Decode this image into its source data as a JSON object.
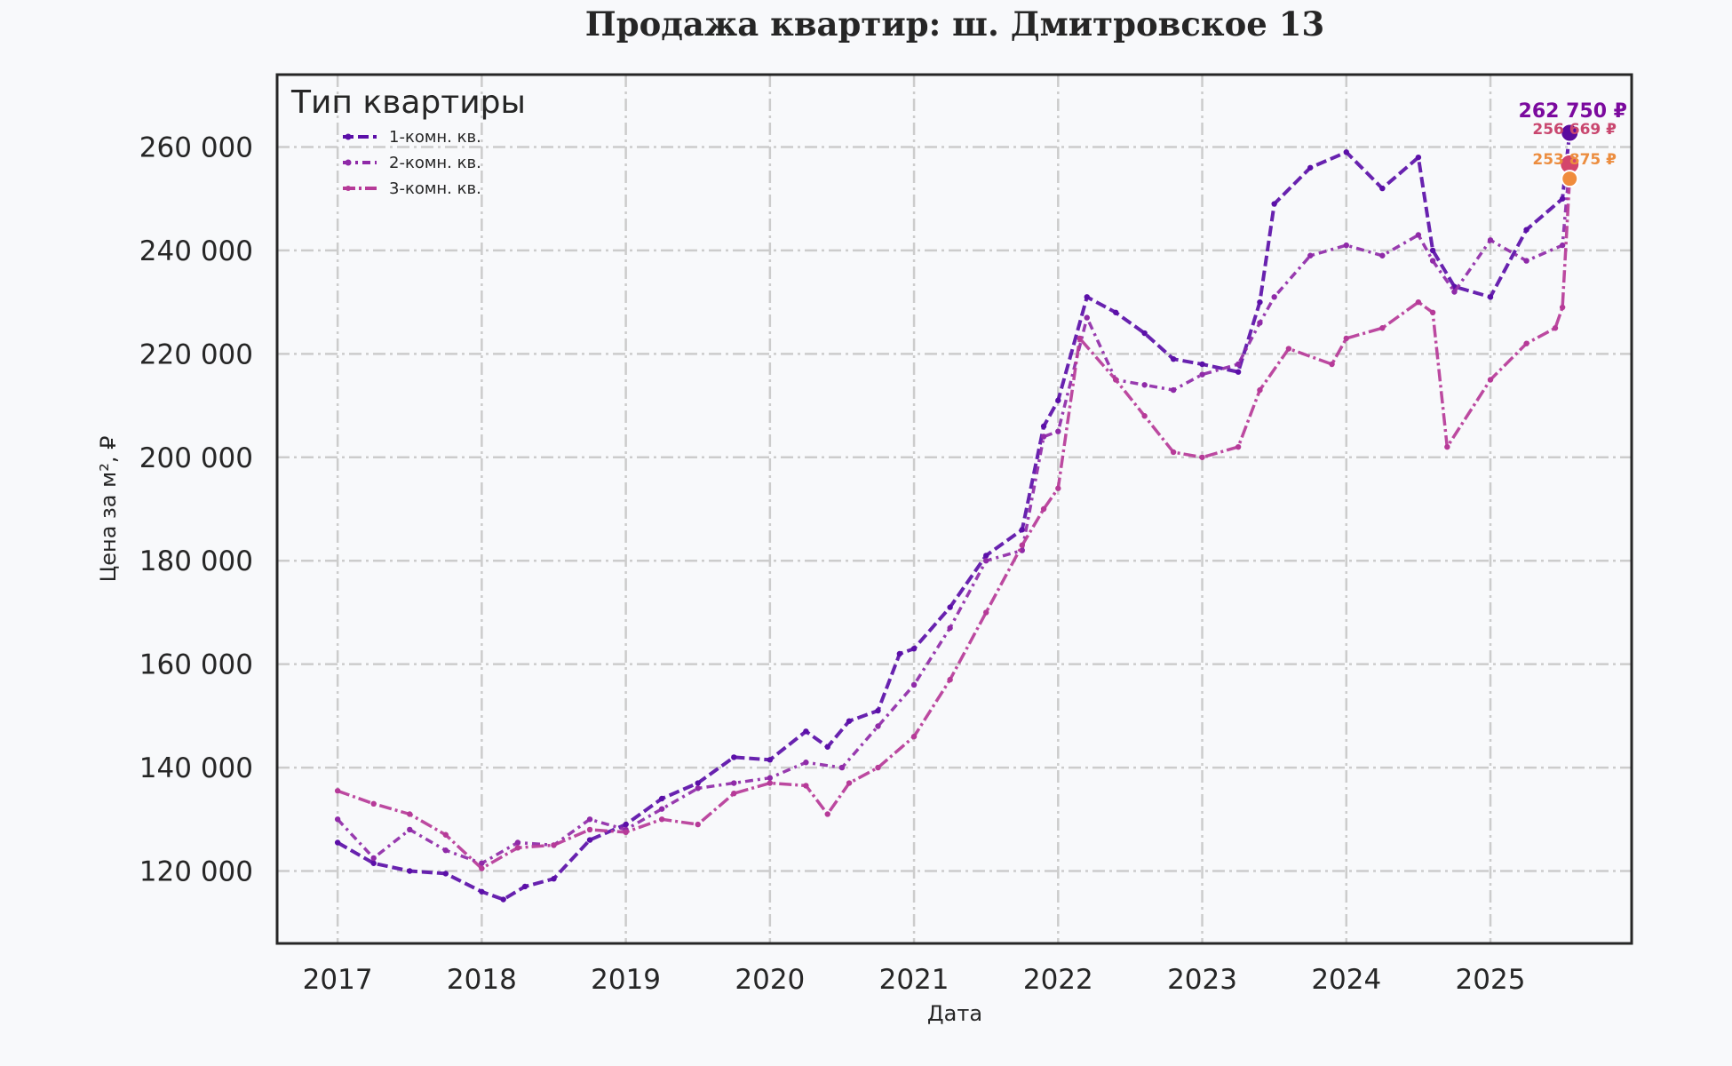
{
  "chart_data": {
    "type": "line",
    "title": "Продажа квартир: ш. Дмитровское 13",
    "xlabel": "Дата",
    "ylabel": "Цена за м², ₽",
    "xlim": [
      2016.58,
      2025.98
    ],
    "ylim": [
      106000,
      274000
    ],
    "x_ticks": [
      2017,
      2018,
      2019,
      2020,
      2021,
      2022,
      2023,
      2024,
      2025
    ],
    "x_tick_labels": [
      "2017",
      "2018",
      "2019",
      "2020",
      "2021",
      "2022",
      "2023",
      "2024",
      "2025"
    ],
    "y_ticks": [
      120000,
      140000,
      160000,
      180000,
      200000,
      220000,
      240000,
      260000
    ],
    "y_tick_labels": [
      "120 000",
      "140 000",
      "160 000",
      "180 000",
      "200 000",
      "220 000",
      "240 000",
      "260 000"
    ],
    "grid": true,
    "legend": {
      "title": "Тип квартиры",
      "placement": "top-left"
    },
    "series": [
      {
        "name": "1-комн. кв.",
        "color": "#5b0fa8",
        "x": [
          2017.0,
          2017.25,
          2017.5,
          2017.75,
          2018.0,
          2018.15,
          2018.3,
          2018.5,
          2018.75,
          2019.0,
          2019.25,
          2019.5,
          2019.75,
          2020.0,
          2020.25,
          2020.4,
          2020.55,
          2020.75,
          2020.9,
          2021.0,
          2021.25,
          2021.5,
          2021.75,
          2021.9,
          2022.0,
          2022.2,
          2022.4,
          2022.6,
          2022.8,
          2023.0,
          2023.25,
          2023.4,
          2023.5,
          2023.75,
          2024.0,
          2024.25,
          2024.5,
          2024.6,
          2024.75,
          2025.0,
          2025.25,
          2025.5,
          2025.55
        ],
        "y": [
          125500,
          121500,
          120000,
          119500,
          116000,
          114500,
          117000,
          118500,
          126000,
          129000,
          134000,
          137000,
          142000,
          141500,
          147000,
          144000,
          149000,
          151000,
          162000,
          163000,
          171000,
          181000,
          186000,
          206000,
          211000,
          231000,
          228000,
          224000,
          219000,
          218000,
          216500,
          230000,
          249000,
          256000,
          259000,
          252000,
          258000,
          240000,
          233000,
          231000,
          244000,
          250000,
          262750
        ]
      },
      {
        "name": "2-комн. кв.",
        "color": "#8f2aa8",
        "x": [
          2017.0,
          2017.25,
          2017.5,
          2017.75,
          2018.0,
          2018.25,
          2018.5,
          2018.75,
          2019.0,
          2019.25,
          2019.5,
          2019.75,
          2020.0,
          2020.25,
          2020.5,
          2020.75,
          2021.0,
          2021.25,
          2021.5,
          2021.75,
          2021.9,
          2022.0,
          2022.2,
          2022.4,
          2022.6,
          2022.8,
          2023.0,
          2023.25,
          2023.4,
          2023.5,
          2023.75,
          2024.0,
          2024.25,
          2024.5,
          2024.6,
          2024.75,
          2025.0,
          2025.25,
          2025.5,
          2025.55
        ],
        "y": [
          130000,
          122500,
          128000,
          124000,
          121500,
          125500,
          125000,
          130000,
          128000,
          132000,
          136000,
          137000,
          138000,
          141000,
          140000,
          148000,
          156000,
          167000,
          180000,
          182000,
          204000,
          205000,
          227000,
          215000,
          214000,
          213000,
          216000,
          218000,
          226000,
          231000,
          239000,
          241000,
          239000,
          243000,
          238000,
          232000,
          242000,
          238000,
          241000,
          256669
        ]
      },
      {
        "name": "3-комн. кв.",
        "color": "#b63a98",
        "x": [
          2017.0,
          2017.25,
          2017.5,
          2017.75,
          2018.0,
          2018.25,
          2018.5,
          2018.75,
          2019.0,
          2019.25,
          2019.5,
          2019.75,
          2020.0,
          2020.25,
          2020.4,
          2020.55,
          2020.75,
          2021.0,
          2021.25,
          2021.5,
          2021.75,
          2021.9,
          2022.0,
          2022.15,
          2022.4,
          2022.6,
          2022.8,
          2023.0,
          2023.25,
          2023.4,
          2023.6,
          2023.9,
          2024.0,
          2024.25,
          2024.5,
          2024.6,
          2024.7,
          2025.0,
          2025.25,
          2025.45,
          2025.5,
          2025.55
        ],
        "y": [
          135500,
          133000,
          131000,
          127000,
          120500,
          124500,
          125000,
          128000,
          127500,
          130000,
          129000,
          135000,
          137000,
          136500,
          131000,
          137000,
          140000,
          146000,
          157000,
          170000,
          183000,
          190000,
          194000,
          223000,
          215000,
          208000,
          201000,
          200000,
          202000,
          213000,
          221000,
          218000,
          223000,
          225000,
          230000,
          228000,
          202000,
          215000,
          222000,
          225000,
          229000,
          253875
        ]
      }
    ],
    "annotations": [
      {
        "text": "262 750 ₽",
        "x": 2025.55,
        "y": 262750,
        "color": "#7b0a9e"
      },
      {
        "text": "256 669 ₽",
        "x": 2025.55,
        "y": 256669,
        "color": "#c9476f"
      },
      {
        "text": "253 875 ₽",
        "x": 2025.55,
        "y": 253875,
        "color": "#ec8d3f"
      }
    ]
  }
}
